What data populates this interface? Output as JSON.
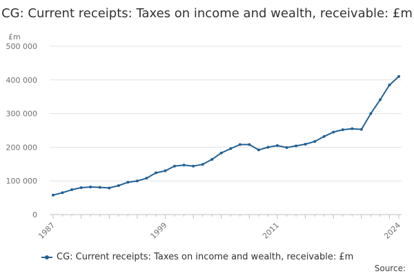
{
  "chart_data": {
    "type": "line",
    "title": "CG: Current receipts: Taxes on income and wealth, receivable: £m",
    "ylabel": "£m",
    "xlabel": "",
    "ylim": [
      0,
      500000
    ],
    "yticks": [
      0,
      100000,
      200000,
      300000,
      400000,
      500000
    ],
    "ytick_labels": [
      "0",
      "100 000",
      "200 000",
      "300 000",
      "400 000",
      "500 000"
    ],
    "xlim": [
      1987,
      2024
    ],
    "xticks": [
      1987,
      1999,
      2011,
      2024
    ],
    "xtick_labels": [
      "1987",
      "1999",
      "2011",
      "2024"
    ],
    "grid": true,
    "series": [
      {
        "name": "CG: Current receipts: Taxes on income and wealth, receivable: £m",
        "color": "#206095",
        "x": [
          1987,
          1988,
          1989,
          1990,
          1991,
          1992,
          1993,
          1994,
          1995,
          1996,
          1997,
          1998,
          1999,
          2000,
          2001,
          2002,
          2003,
          2004,
          2005,
          2006,
          2007,
          2008,
          2009,
          2010,
          2011,
          2012,
          2013,
          2014,
          2015,
          2016,
          2017,
          2018,
          2019,
          2020,
          2021,
          2022,
          2023,
          2024
        ],
        "values": [
          58000,
          65000,
          74000,
          80000,
          82000,
          81000,
          79000,
          86000,
          96000,
          100000,
          108000,
          124000,
          130000,
          144000,
          147000,
          144000,
          149000,
          164000,
          183000,
          196000,
          208000,
          208000,
          192000,
          200000,
          205000,
          199000,
          204000,
          209000,
          217000,
          232000,
          245000,
          252000,
          255000,
          253000,
          300000,
          341000,
          385000,
          410000
        ]
      }
    ],
    "legend": "bottom-left"
  },
  "source_label": "Source:"
}
